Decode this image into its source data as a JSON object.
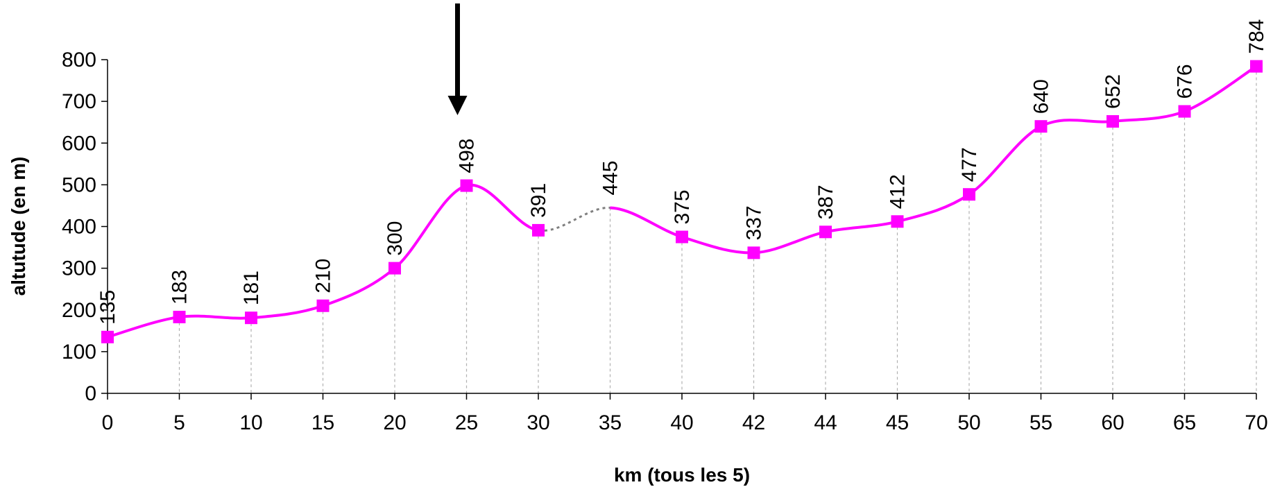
{
  "chart_data": {
    "type": "line",
    "title": "",
    "xlabel": "km  (tous les 5)",
    "ylabel": "altutude (en m)",
    "ylim": [
      0,
      800
    ],
    "yticks": [
      "0",
      "100",
      "200",
      "300",
      "400",
      "500",
      "600",
      "700",
      "800"
    ],
    "categories": [
      "0",
      "5",
      "10",
      "15",
      "20",
      "25",
      "30",
      "35",
      "40",
      "42",
      "44",
      "45",
      "50",
      "55",
      "60",
      "65",
      "70"
    ],
    "series": [
      {
        "values": [
          135,
          183,
          181,
          210,
          300,
          498,
          391,
          445,
          375,
          337,
          387,
          412,
          477,
          640,
          652,
          676,
          784
        ],
        "data_labels": [
          "135",
          "183",
          "181",
          "210",
          "300",
          "498",
          "391",
          "445",
          "375",
          "337",
          "387",
          "412",
          "477",
          "640",
          "652",
          "676",
          "784"
        ],
        "markers_missing_at": [
          "35"
        ],
        "dashed_segment": [
          "30",
          "35"
        ],
        "color": "#ff00ff"
      }
    ],
    "annotation": {
      "type": "down-arrow",
      "at_category": "25",
      "color": "#000000"
    },
    "grid": false,
    "legend": "none"
  }
}
